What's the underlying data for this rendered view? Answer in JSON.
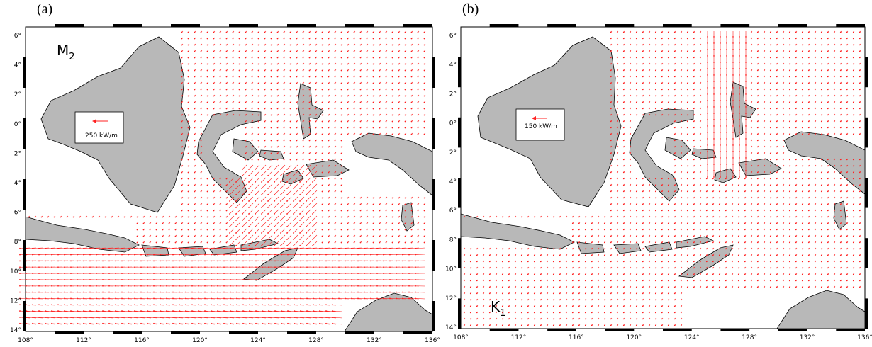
{
  "panels": [
    {
      "label": "(a)",
      "constituent": "M",
      "subscript": "2",
      "legend_text": "250 kW/m"
    },
    {
      "label": "(b)",
      "constituent": "K",
      "subscript": "1",
      "legend_text": "150 kW/m"
    }
  ],
  "axes": {
    "lon_ticks": [
      "108°",
      "112°",
      "116°",
      "120°",
      "124°",
      "128°",
      "132°",
      "136°"
    ],
    "lat_ticks": [
      "6°",
      "4°",
      "2°",
      "0°",
      "2°",
      "4°",
      "6°",
      "8°",
      "10°",
      "12°",
      "14°"
    ]
  },
  "colors": {
    "land": "#b8b8b8",
    "coast": "#000000",
    "flux": "#ff2020"
  }
}
